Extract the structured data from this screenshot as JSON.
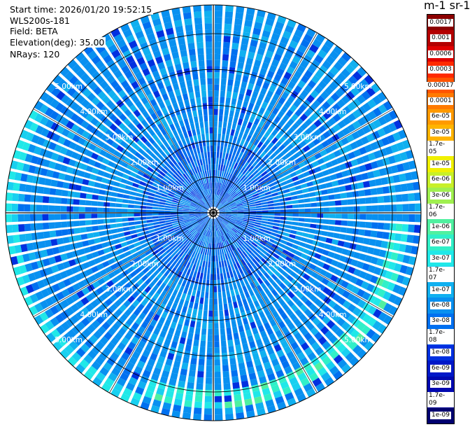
{
  "header": {
    "start_time": "Start time: 2026/01/20 19:52:15",
    "instrument": "WLS200s-181",
    "field": "Field: BETA",
    "elevation": "Elevation(deg): 35.00",
    "nrays": "NRays: 120"
  },
  "ppi": {
    "range_labels": [
      "1.00km",
      "2.00km",
      "3.00km",
      "4.00km",
      "5.00km"
    ],
    "rays": 120,
    "ring_distances_km": [
      1,
      2,
      3,
      4,
      5
    ]
  },
  "colorbar": {
    "title": "m-1 sr-1",
    "labels": [
      "0.0017",
      "0.001",
      "0.0006",
      "0.0003",
      "0.00017",
      "0.0001",
      "6e-05",
      "3e-05",
      "1.7e-05",
      "1e-05",
      "6e-06",
      "3e-06",
      "1.7e-06",
      "1e-06",
      "6e-07",
      "3e-07",
      "1.7e-07",
      "1e-07",
      "6e-08",
      "3e-08",
      "1.7e-08",
      "1e-08",
      "6e-09",
      "3e-09",
      "1.7e-09",
      "1e-09"
    ],
    "colors": [
      "#8b0000",
      "#b30000",
      "#e00000",
      "#ff2a00",
      "#ff5500",
      "#ff7a00",
      "#ff9a00",
      "#ffb400",
      "#ffd000",
      "#f0f000",
      "#c8f028",
      "#a0f050",
      "#78f078",
      "#50f0a0",
      "#30f0c8",
      "#20e8e8",
      "#18d0f0",
      "#10b0f0",
      "#0890f0",
      "#0070f0",
      "#0050e8",
      "#0030e0",
      "#0018c8",
      "#0008b0",
      "#000090",
      "#000070"
    ]
  }
}
